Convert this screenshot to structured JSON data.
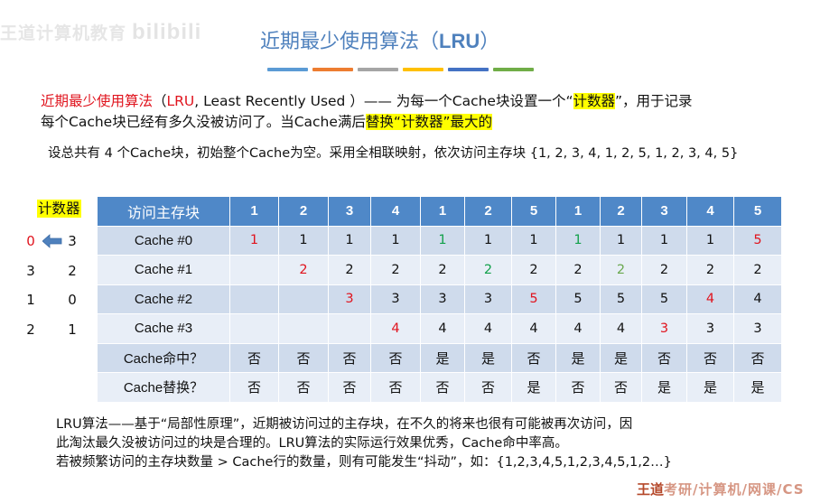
{
  "watermark": {
    "text": "王道计算机教育",
    "brand": "bilibili"
  },
  "title": {
    "cn": "近期最少使用算法（",
    "abbr": "LRU",
    "close": "）"
  },
  "color_bars": [
    "#5b9bd5",
    "#ed7d31",
    "#a5a5a5",
    "#ffc000",
    "#4472c4",
    "#70ad47"
  ],
  "definition": {
    "term": "近期最少使用算法",
    "paren_open": "（",
    "abbr": "LRU",
    "full": ", Least Recently Used ）—— 为每一个Cache块设置一个“",
    "highlight1": "计数器",
    "after1": "”，用于记录",
    "line2_prefix": "每个Cache块已经有多久没被访问了。当Cache满后",
    "highlight2": "替换“计数器”最大的"
  },
  "setup": "设总共有 4 个Cache块，初始整个Cache为空。采用全相联映射，依次访问主存块 {1, 2, 3, 4, 1, 2, 5, 1, 2, 3, 4, 5}",
  "counter": {
    "label": "计数器",
    "left_values": [
      "0",
      "3",
      "1",
      "2"
    ],
    "right_values": [
      "3",
      "2",
      "0",
      "1"
    ],
    "arrow_icon": "left-arrow-icon"
  },
  "table": {
    "header_label": "访问主存块",
    "access_sequence": [
      "1",
      "2",
      "3",
      "4",
      "1",
      "2",
      "5",
      "1",
      "2",
      "3",
      "4",
      "5"
    ],
    "rows": [
      {
        "label": "Cache #0",
        "cells": [
          {
            "v": "1",
            "c": "red"
          },
          {
            "v": "1",
            "c": "black"
          },
          {
            "v": "1",
            "c": "black"
          },
          {
            "v": "1",
            "c": "black"
          },
          {
            "v": "1",
            "c": "green"
          },
          {
            "v": "1",
            "c": "black"
          },
          {
            "v": "1",
            "c": "black"
          },
          {
            "v": "1",
            "c": "green"
          },
          {
            "v": "1",
            "c": "black"
          },
          {
            "v": "1",
            "c": "black"
          },
          {
            "v": "1",
            "c": "black"
          },
          {
            "v": "5",
            "c": "red"
          }
        ]
      },
      {
        "label": "Cache #1",
        "cells": [
          {
            "v": "",
            "c": "black"
          },
          {
            "v": "2",
            "c": "red"
          },
          {
            "v": "2",
            "c": "black"
          },
          {
            "v": "2",
            "c": "black"
          },
          {
            "v": "2",
            "c": "black"
          },
          {
            "v": "2",
            "c": "green"
          },
          {
            "v": "2",
            "c": "black"
          },
          {
            "v": "2",
            "c": "black"
          },
          {
            "v": "2",
            "c": "green2"
          },
          {
            "v": "2",
            "c": "black"
          },
          {
            "v": "2",
            "c": "black"
          },
          {
            "v": "2",
            "c": "black"
          }
        ]
      },
      {
        "label": "Cache #2",
        "cells": [
          {
            "v": "",
            "c": "black"
          },
          {
            "v": "",
            "c": "black"
          },
          {
            "v": "3",
            "c": "red"
          },
          {
            "v": "3",
            "c": "black"
          },
          {
            "v": "3",
            "c": "black"
          },
          {
            "v": "3",
            "c": "black"
          },
          {
            "v": "5",
            "c": "red"
          },
          {
            "v": "5",
            "c": "black"
          },
          {
            "v": "5",
            "c": "black"
          },
          {
            "v": "5",
            "c": "black"
          },
          {
            "v": "4",
            "c": "red"
          },
          {
            "v": "4",
            "c": "black"
          }
        ]
      },
      {
        "label": "Cache #3",
        "cells": [
          {
            "v": "",
            "c": "black"
          },
          {
            "v": "",
            "c": "black"
          },
          {
            "v": "",
            "c": "black"
          },
          {
            "v": "4",
            "c": "red"
          },
          {
            "v": "4",
            "c": "black"
          },
          {
            "v": "4",
            "c": "black"
          },
          {
            "v": "4",
            "c": "black"
          },
          {
            "v": "4",
            "c": "black"
          },
          {
            "v": "4",
            "c": "black"
          },
          {
            "v": "3",
            "c": "red"
          },
          {
            "v": "3",
            "c": "black"
          },
          {
            "v": "3",
            "c": "black"
          }
        ]
      }
    ],
    "hit_row": {
      "label": "Cache命中？",
      "values": [
        "否",
        "否",
        "否",
        "否",
        "是",
        "是",
        "否",
        "是",
        "是",
        "否",
        "否",
        "否"
      ]
    },
    "replace_row": {
      "label": "Cache替换？",
      "values": [
        "否",
        "否",
        "否",
        "否",
        "否",
        "否",
        "是",
        "否",
        "否",
        "是",
        "是",
        "是"
      ]
    }
  },
  "conclusion": {
    "line1": "LRU算法——基于“局部性原理”，近期被访问过的主存块，在不久的将来也很有可能被再次访问，因",
    "line2": "此淘汰最久没被访问过的块是合理的。LRU算法的实际运行效果优秀，Cache命中率高。",
    "line3": "若被频繁访问的主存块数量 > Cache行的数量，则有可能发生“抖动”，如：{1,2,3,4,5,1,2,3,4,5,1,2…}"
  },
  "footer_watermark": {
    "prefix": "王道",
    "rest": "考研/计算机/网课/CS"
  }
}
